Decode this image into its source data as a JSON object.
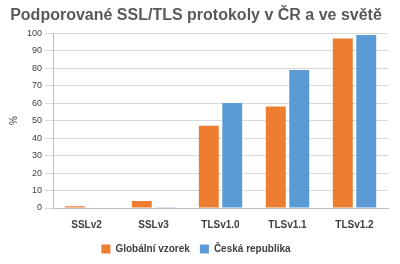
{
  "chart_data": {
    "type": "bar",
    "title": "Podporované SSL/TLS protokoly v ČR a ve světě",
    "y_label": "%",
    "categories": [
      "SSLv2",
      "SSLv3",
      "TLSv1.0",
      "TLSv1.1",
      "TLSv1.2"
    ],
    "series": [
      {
        "name": "Globální vzorek",
        "color": "#ed7d31",
        "values": [
          1,
          4,
          47,
          58,
          97
        ]
      },
      {
        "name": "Česká republika",
        "color": "#5b9bd5",
        "values": [
          0.3,
          0.5,
          60,
          79,
          99
        ]
      }
    ],
    "ylim": [
      0,
      100
    ],
    "yticks": [
      0,
      10,
      20,
      30,
      40,
      50,
      60,
      70,
      80,
      90,
      100
    ],
    "grid": true,
    "legend": "bottom"
  }
}
